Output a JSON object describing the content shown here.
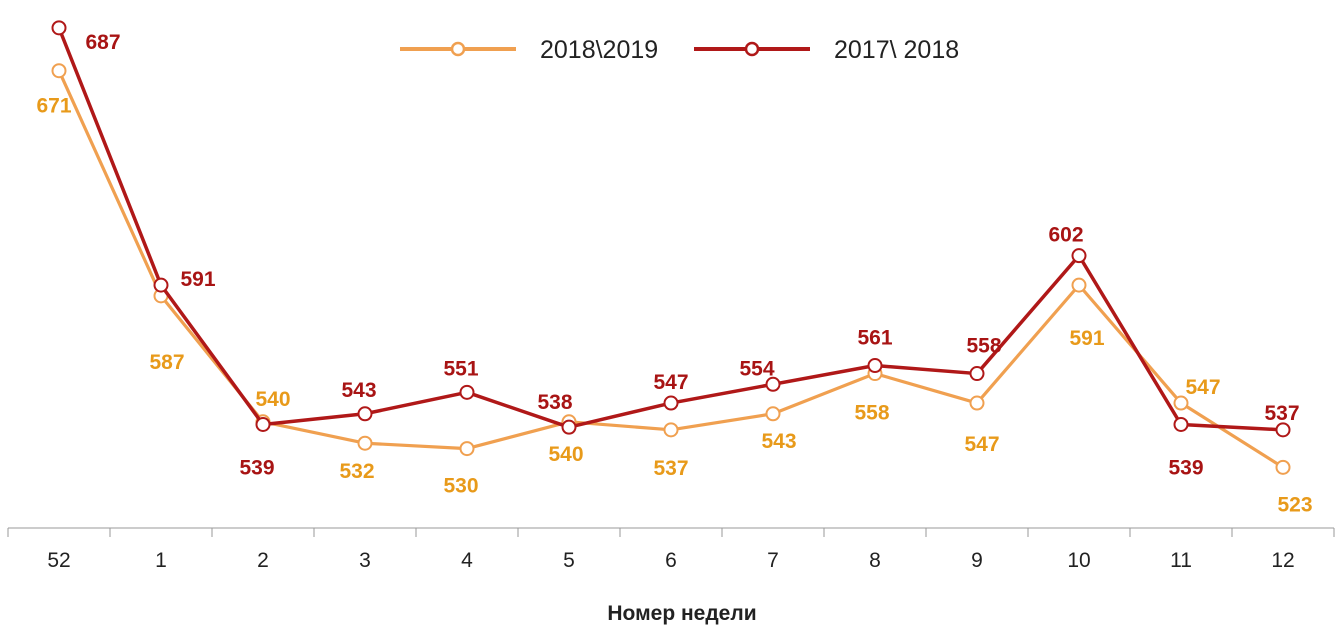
{
  "chart_data": {
    "type": "line",
    "title": "",
    "xlabel": "Номер недели",
    "ylabel": "",
    "ylim": [
      500,
      700
    ],
    "grid": false,
    "legend_position": "top-center",
    "categories": [
      "52",
      "1",
      "2",
      "3",
      "4",
      "5",
      "6",
      "7",
      "8",
      "9",
      "10",
      "11",
      "12"
    ],
    "series": [
      {
        "name": "2018\\2019",
        "color": "#f0a050",
        "label_color": "#e89a1a",
        "values": [
          671,
          587,
          540,
          532,
          530,
          540,
          537,
          543,
          558,
          547,
          591,
          547,
          523
        ]
      },
      {
        "name": "2017\\ 2018",
        "color": "#b01818",
        "label_color": "#a81414",
        "values": [
          687,
          591,
          539,
          543,
          551,
          538,
          547,
          554,
          561,
          558,
          602,
          539,
          537
        ]
      }
    ]
  }
}
